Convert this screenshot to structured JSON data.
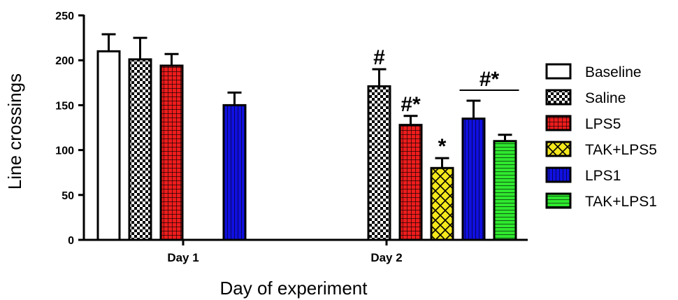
{
  "chart_data": {
    "type": "bar",
    "title": "",
    "xlabel": "Day of experiment",
    "ylabel": "Line crossings",
    "ylim": [
      0,
      250
    ],
    "yticks": [
      "0",
      "50",
      "100",
      "150",
      "200",
      "250"
    ],
    "categories": [
      "Day 1",
      "Day 2"
    ],
    "legend_position": "right",
    "series": [
      {
        "name": "Baseline",
        "fill": "#ffffff",
        "pattern": "none",
        "values": [
          210,
          null
        ],
        "errors": [
          19,
          null
        ]
      },
      {
        "name": "Saline",
        "fill": "#ffffff",
        "pattern": "checker",
        "values": [
          201,
          171
        ],
        "errors": [
          24,
          19
        ]
      },
      {
        "name": "LPS5",
        "fill": "#ee1c1c",
        "pattern": "grid",
        "values": [
          194,
          128
        ],
        "errors": [
          13,
          10
        ]
      },
      {
        "name": "TAK+LPS5",
        "fill": "#f5e81c",
        "pattern": "crosshatch",
        "values": [
          null,
          80
        ],
        "errors": [
          null,
          11
        ]
      },
      {
        "name": "LPS1",
        "fill": "#1010e0",
        "pattern": "vertical",
        "values": [
          150,
          135
        ],
        "errors": [
          14,
          20
        ]
      },
      {
        "name": "TAK+LPS1",
        "fill": "#2ee82e",
        "pattern": "horizontal",
        "values": [
          null,
          110
        ],
        "errors": [
          null,
          7
        ]
      }
    ],
    "annotations": [
      {
        "text": "#",
        "series": "Saline",
        "category": "Day 2"
      },
      {
        "text": "#*",
        "series": "LPS5",
        "category": "Day 2"
      },
      {
        "text": "*",
        "series": "TAK+LPS5",
        "category": "Day 2"
      },
      {
        "text": "#*",
        "series": [
          "LPS1",
          "TAK+LPS1"
        ],
        "category": "Day 2",
        "bracket": true
      }
    ]
  }
}
